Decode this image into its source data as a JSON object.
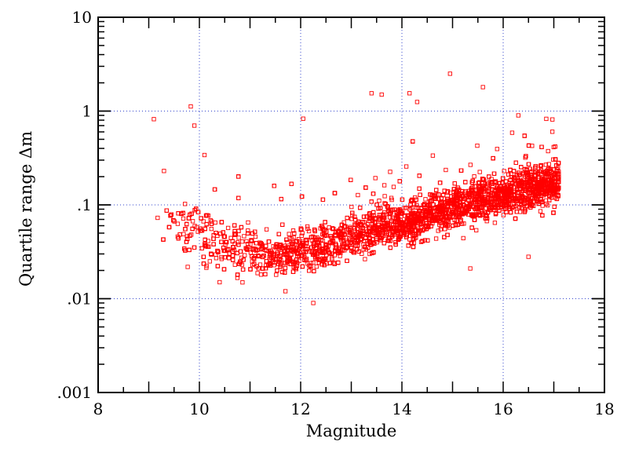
{
  "chart_data": {
    "type": "scatter",
    "title": "",
    "xlabel": "Magnitude",
    "ylabel": "Quartile range Δm",
    "xlim": [
      8,
      18
    ],
    "ylim": [
      0.001,
      10
    ],
    "yscale": "log",
    "grid": true,
    "grid_style": "dotted",
    "marker": "open-square",
    "color": "#ff0000",
    "x_ticks": [
      {
        "value": 8,
        "label": "8"
      },
      {
        "value": 10,
        "label": "10"
      },
      {
        "value": 12,
        "label": "12"
      },
      {
        "value": 14,
        "label": "14"
      },
      {
        "value": 16,
        "label": "16"
      },
      {
        "value": 18,
        "label": "18"
      }
    ],
    "y_ticks": [
      {
        "value": 0.001,
        "label": ".001"
      },
      {
        "value": 0.01,
        "label": ".01"
      },
      {
        "value": 0.1,
        "label": ".1"
      },
      {
        "value": 1,
        "label": "1"
      },
      {
        "value": 10,
        "label": "10"
      }
    ],
    "trend": {
      "x": [
        9.2,
        10,
        10.5,
        11,
        11.5,
        12,
        12.5,
        13,
        13.5,
        14,
        14.5,
        15,
        15.5,
        16,
        16.5,
        17,
        17.1
      ],
      "median_y": [
        0.08,
        0.05,
        0.035,
        0.03,
        0.03,
        0.032,
        0.036,
        0.045,
        0.055,
        0.065,
        0.075,
        0.09,
        0.11,
        0.13,
        0.15,
        0.16,
        0.17
      ]
    },
    "outliers": [
      {
        "x": 9.1,
        "y": 0.82
      },
      {
        "x": 9.83,
        "y": 1.12
      },
      {
        "x": 9.9,
        "y": 0.7
      },
      {
        "x": 10.1,
        "y": 0.34
      },
      {
        "x": 12.05,
        "y": 0.83
      },
      {
        "x": 12.25,
        "y": 0.009
      },
      {
        "x": 13.4,
        "y": 1.55
      },
      {
        "x": 13.6,
        "y": 1.5
      },
      {
        "x": 14.15,
        "y": 1.55
      },
      {
        "x": 14.3,
        "y": 1.25
      },
      {
        "x": 14.95,
        "y": 2.5
      },
      {
        "x": 15.6,
        "y": 1.8
      },
      {
        "x": 16.5,
        "y": 0.028
      },
      {
        "x": 15.35,
        "y": 0.021
      },
      {
        "x": 16.3,
        "y": 0.9
      },
      {
        "x": 9.3,
        "y": 0.23
      },
      {
        "x": 11.7,
        "y": 0.012
      },
      {
        "x": 10.4,
        "y": 0.015
      }
    ]
  }
}
